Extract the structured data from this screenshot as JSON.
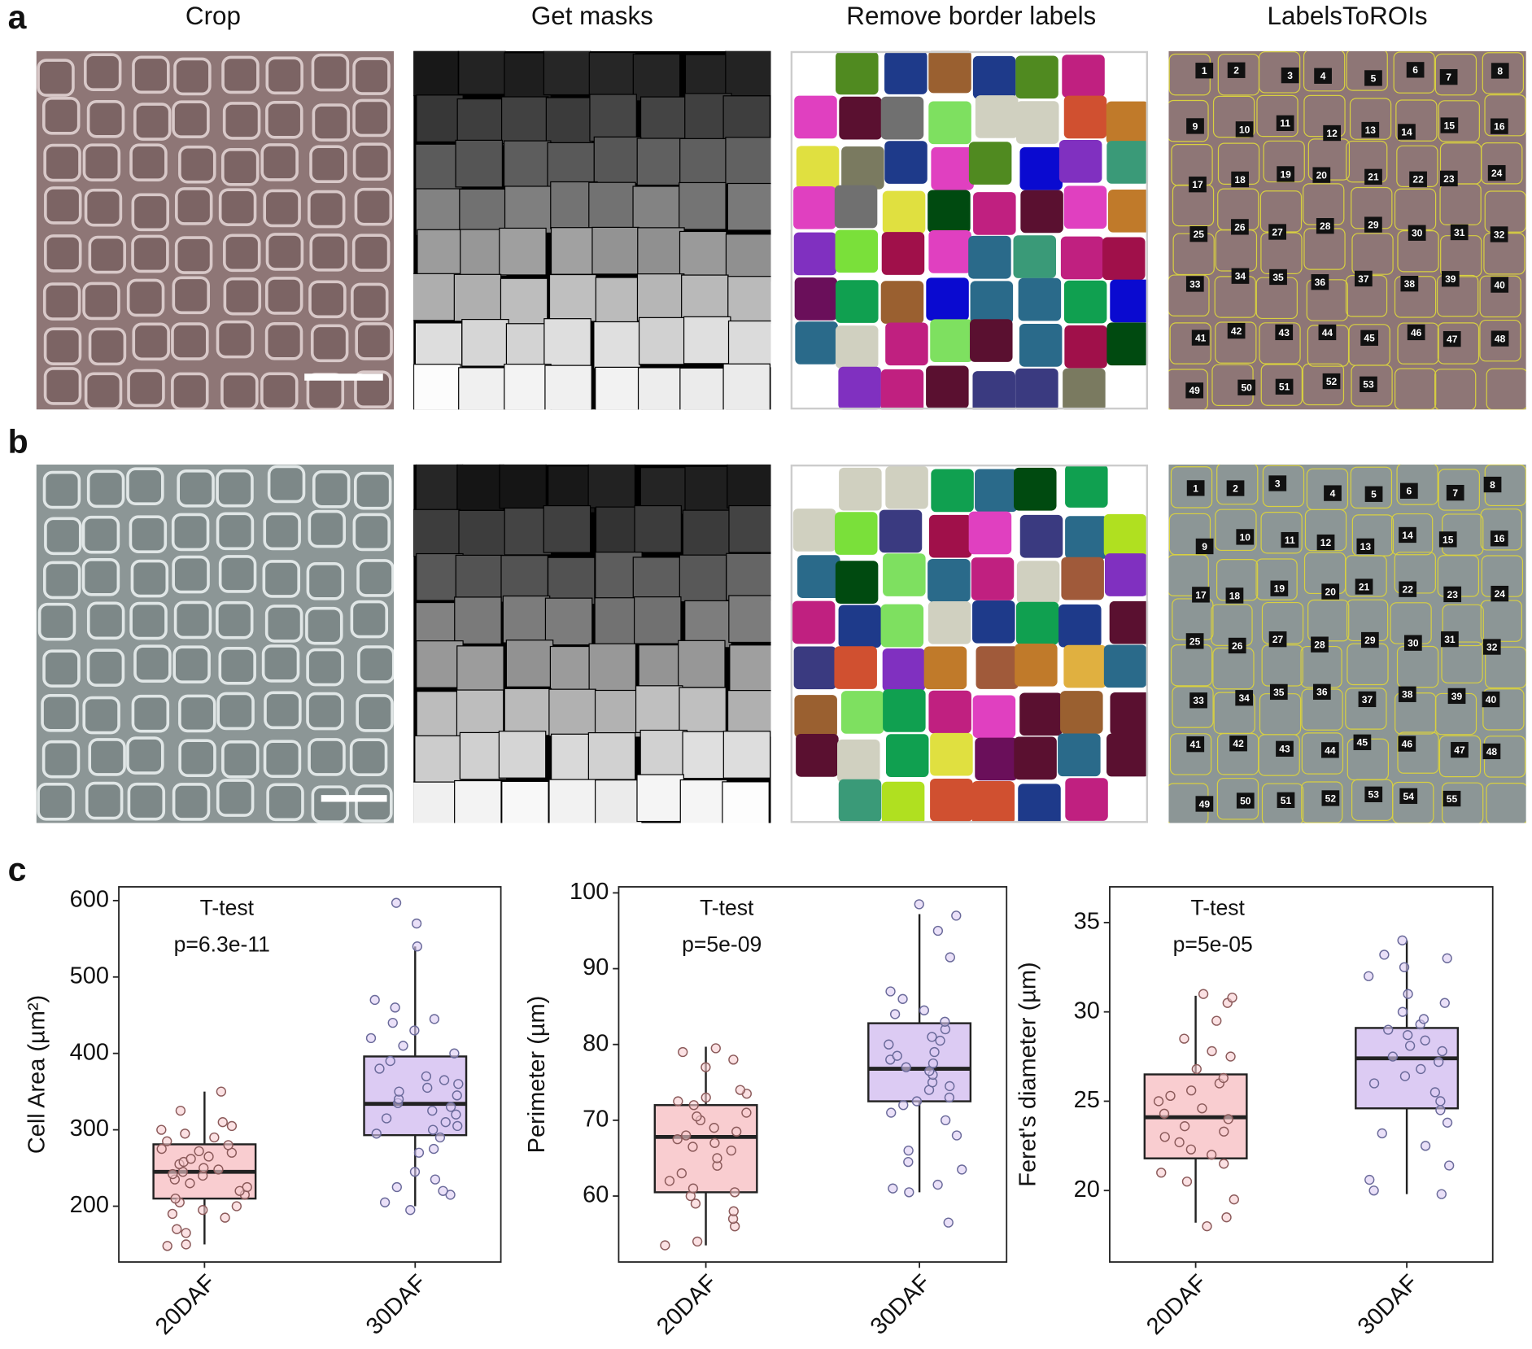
{
  "figure": {
    "panel_labels": [
      "a",
      "b",
      "c"
    ],
    "column_titles": [
      "Crop",
      "Get masks",
      "Remove border labels",
      "LabelsToROIs"
    ],
    "roi_labels_a": [
      1,
      2,
      3,
      4,
      5,
      6,
      7,
      8,
      9,
      10,
      11,
      12,
      13,
      14,
      15,
      16,
      17,
      18,
      19,
      20,
      21,
      22,
      23,
      24,
      25,
      26,
      27,
      28,
      29,
      30,
      31,
      32,
      33,
      34,
      35,
      36,
      37,
      38,
      39,
      40,
      41,
      42,
      43,
      44,
      45,
      46,
      47,
      48,
      49,
      50,
      51,
      52,
      53
    ],
    "roi_labels_b": [
      1,
      2,
      3,
      4,
      5,
      6,
      7,
      8,
      9,
      10,
      11,
      12,
      13,
      14,
      15,
      16,
      17,
      18,
      19,
      20,
      21,
      22,
      23,
      24,
      25,
      26,
      27,
      28,
      29,
      30,
      31,
      32,
      33,
      34,
      35,
      36,
      37,
      38,
      39,
      40,
      41,
      42,
      43,
      44,
      45,
      46,
      47,
      48,
      49,
      50,
      51,
      52,
      53,
      54,
      55
    ]
  },
  "chart_data": [
    {
      "type": "box",
      "ylabel": "Cell Area (µm²)",
      "annotations": [
        "T-test",
        "p=6.3e-11"
      ],
      "categories": [
        "20DAF",
        "30DAF"
      ],
      "colors": [
        "#f9cdd0",
        "#dccbf3"
      ],
      "point_colors": [
        "#8b5a5a",
        "#6a6a9a"
      ],
      "stats": [
        {
          "whislo": 150,
          "q1": 210,
          "med": 245,
          "q3": 281,
          "whishi": 350
        },
        {
          "whislo": 200,
          "q1": 293,
          "med": 334,
          "q3": 396,
          "whishi": 540
        }
      ],
      "points": [
        [
          150,
          148,
          165,
          170,
          185,
          190,
          195,
          200,
          205,
          210,
          215,
          220,
          225,
          230,
          235,
          240,
          242,
          245,
          248,
          250,
          255,
          258,
          262,
          265,
          270,
          272,
          275,
          280,
          285,
          290,
          295,
          300,
          305,
          310,
          325,
          350
        ],
        [
          195,
          205,
          215,
          220,
          225,
          235,
          245,
          270,
          275,
          290,
          295,
          300,
          305,
          310,
          315,
          320,
          325,
          330,
          335,
          340,
          345,
          350,
          355,
          360,
          365,
          370,
          380,
          390,
          400,
          410,
          420,
          430,
          440,
          445,
          460,
          470,
          540,
          570,
          597
        ]
      ],
      "ylim": [
        127,
        618
      ],
      "yticks": [
        200,
        300,
        400,
        500,
        600
      ]
    },
    {
      "type": "box",
      "ylabel": "Perimeter (µm)",
      "annotations": [
        "T-test",
        "p=5e-09"
      ],
      "categories": [
        "20DAF",
        "30DAF"
      ],
      "colors": [
        "#f9cdd0",
        "#dccbf3"
      ],
      "point_colors": [
        "#8b5a5a",
        "#6a6a9a"
      ],
      "stats": [
        {
          "whislo": 53.5,
          "q1": 60.5,
          "med": 67.8,
          "q3": 72,
          "whishi": 79.7
        },
        {
          "whislo": 60.5,
          "q1": 72.5,
          "med": 76.8,
          "q3": 82.8,
          "whishi": 97.2
        }
      ],
      "points": [
        [
          53.5,
          54,
          56,
          57,
          58,
          59,
          60,
          60.5,
          61,
          62,
          63,
          64,
          65,
          66,
          66.5,
          67,
          67.5,
          68,
          68.5,
          69,
          70,
          70.5,
          71,
          72,
          72.5,
          73,
          73.5,
          74,
          77,
          78,
          79,
          79.5
        ],
        [
          56.5,
          60.5,
          61,
          61.5,
          63.5,
          64.5,
          66,
          68,
          70,
          71,
          72,
          72.5,
          73,
          74,
          74.5,
          75,
          76,
          76.5,
          77,
          77.5,
          78,
          78.5,
          79,
          80,
          80.5,
          81,
          82,
          83,
          84,
          84.5,
          86,
          87,
          91.5,
          95,
          97,
          98.5
        ]
      ],
      "ylim": [
        51.3,
        100.8
      ],
      "yticks": [
        60,
        70,
        80,
        90,
        100
      ]
    },
    {
      "type": "box",
      "ylabel": "Feret's diameter (µm)",
      "annotations": [
        "T-test",
        "p=5e-05"
      ],
      "categories": [
        "20DAF",
        "30DAF"
      ],
      "colors": [
        "#f9cdd0",
        "#dccbf3"
      ],
      "point_colors": [
        "#8b5a5a",
        "#6a6a9a"
      ],
      "stats": [
        {
          "whislo": 18.2,
          "q1": 21.8,
          "med": 24.1,
          "q3": 26.5,
          "whishi": 30.9
        },
        {
          "whislo": 19.8,
          "q1": 24.6,
          "med": 27.4,
          "q3": 29.1,
          "whishi": 34.0
        }
      ],
      "points": [
        [
          18,
          18.5,
          19.5,
          20.5,
          21,
          21.5,
          22,
          22.3,
          22.7,
          23,
          23.3,
          23.6,
          24,
          24.3,
          24.6,
          25,
          25.3,
          25.6,
          26,
          26.3,
          26.8,
          27.5,
          27.8,
          28.5,
          29.5,
          30.5,
          30.8,
          31
        ],
        [
          19.8,
          20,
          20.6,
          21.4,
          22.5,
          23.2,
          23.8,
          24.5,
          25,
          25.5,
          26,
          26.4,
          26.8,
          27.2,
          27.5,
          27.8,
          28.1,
          28.4,
          28.7,
          29,
          29.3,
          29.6,
          30,
          30.5,
          31,
          32,
          32.5,
          33,
          33.2,
          34
        ]
      ],
      "ylim": [
        16.0,
        37.0
      ],
      "yticks": [
        20,
        25,
        30,
        35
      ]
    }
  ]
}
